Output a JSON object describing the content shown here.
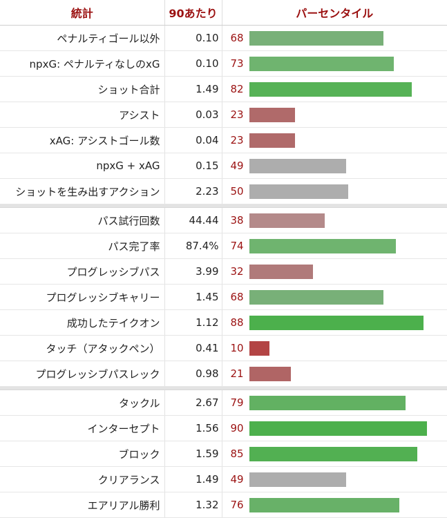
{
  "header": {
    "stat": "統計",
    "per90": "90あたり",
    "percentile": "パーセンタイル"
  },
  "groups": [
    [
      {
        "stat": "ペナルティゴール以外",
        "per90": "0.10",
        "percentile": 68,
        "color": "#78b078"
      },
      {
        "stat": "npxG: ペナルティなしのxG",
        "per90": "0.10",
        "percentile": 73,
        "color": "#6fb46f"
      },
      {
        "stat": "ショット合計",
        "per90": "1.49",
        "percentile": 82,
        "color": "#56b256"
      },
      {
        "stat": "アシスト",
        "per90": "0.03",
        "percentile": 23,
        "color": "#b06a6a"
      },
      {
        "stat": "xAG: アシストゴール数",
        "per90": "0.04",
        "percentile": 23,
        "color": "#b06a6a"
      },
      {
        "stat": "npxG + xAG",
        "per90": "0.15",
        "percentile": 49,
        "color": "#adadad"
      },
      {
        "stat": "ショットを生み出すアクション",
        "per90": "2.23",
        "percentile": 50,
        "color": "#adadad"
      }
    ],
    [
      {
        "stat": "パス試行回数",
        "per90": "44.44",
        "percentile": 38,
        "color": "#b48a8a"
      },
      {
        "stat": "パス完了率",
        "per90": "87.4%",
        "percentile": 74,
        "color": "#6fb46f"
      },
      {
        "stat": "プログレッシブパス",
        "per90": "3.99",
        "percentile": 32,
        "color": "#b07a7a"
      },
      {
        "stat": "プログレッシブキャリー",
        "per90": "1.45",
        "percentile": 68,
        "color": "#78b078"
      },
      {
        "stat": "成功したテイクオン",
        "per90": "1.12",
        "percentile": 88,
        "color": "#4cb04c"
      },
      {
        "stat": "タッチ（アタックペン）",
        "per90": "0.41",
        "percentile": 10,
        "color": "#b34444"
      },
      {
        "stat": "プログレッシブパスレック",
        "per90": "0.98",
        "percentile": 21,
        "color": "#b06565"
      }
    ],
    [
      {
        "stat": "タックル",
        "per90": "2.67",
        "percentile": 79,
        "color": "#62b162"
      },
      {
        "stat": "インターセプト",
        "per90": "1.56",
        "percentile": 90,
        "color": "#4cb04c"
      },
      {
        "stat": "ブロック",
        "per90": "1.59",
        "percentile": 85,
        "color": "#52b052"
      },
      {
        "stat": "クリアランス",
        "per90": "1.49",
        "percentile": 49,
        "color": "#adadad"
      },
      {
        "stat": "エアリアル勝利",
        "per90": "1.32",
        "percentile": 76,
        "color": "#68b168"
      }
    ]
  ]
}
